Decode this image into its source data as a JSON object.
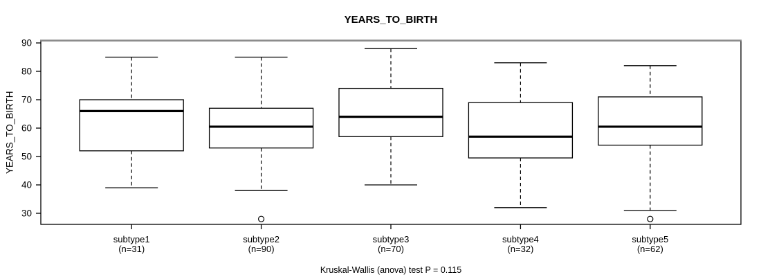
{
  "chart_data": {
    "type": "boxplot",
    "title": "YEARS_TO_BIRTH",
    "ylabel": "YEARS_TO_BIRTH",
    "annotation": "Kruskal-Wallis (anova) test P = 0.115",
    "ylim": [
      30,
      90
    ],
    "y_ticks": [
      30,
      40,
      50,
      60,
      70,
      80,
      90
    ],
    "grid": false,
    "legend": "none",
    "categories": [
      {
        "label": "subtype1",
        "sublabel": "(n=31)"
      },
      {
        "label": "subtype2",
        "sublabel": "(n=90)"
      },
      {
        "label": "subtype3",
        "sublabel": "(n=70)"
      },
      {
        "label": "subtype4",
        "sublabel": "(n=32)"
      },
      {
        "label": "subtype5",
        "sublabel": "(n=62)"
      }
    ],
    "boxes": [
      {
        "category": "subtype1",
        "n": 31,
        "whisker_low": 39,
        "q1": 52,
        "median": 66,
        "q3": 70,
        "whisker_high": 85,
        "outliers": []
      },
      {
        "category": "subtype2",
        "n": 90,
        "whisker_low": 38,
        "q1": 53,
        "median": 60.5,
        "q3": 67,
        "whisker_high": 85,
        "outliers": [
          28
        ]
      },
      {
        "category": "subtype3",
        "n": 70,
        "whisker_low": 40,
        "q1": 57,
        "median": 64,
        "q3": 74,
        "whisker_high": 88,
        "outliers": []
      },
      {
        "category": "subtype4",
        "n": 32,
        "whisker_low": 32,
        "q1": 49.5,
        "median": 57,
        "q3": 69,
        "whisker_high": 83,
        "outliers": []
      },
      {
        "category": "subtype5",
        "n": 62,
        "whisker_low": 31,
        "q1": 54,
        "median": 60.5,
        "q3": 71,
        "whisker_high": 82,
        "outliers": [
          28
        ]
      }
    ],
    "colors": {
      "stroke": "#000000",
      "box_fill": "#ffffff",
      "background": "#ffffff",
      "frame_top_edge": "#8c8c8c"
    }
  }
}
